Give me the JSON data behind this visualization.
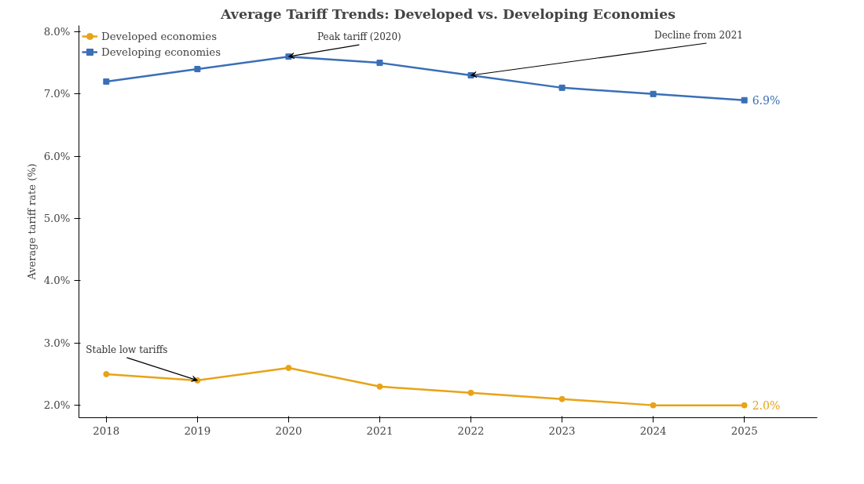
{
  "chart_data": {
    "type": "line",
    "title": "Average Tariff Trends: Developed vs. Developing Economies",
    "ylabel": "Average tariff rate (%)",
    "x": [
      2018,
      2019,
      2020,
      2021,
      2022,
      2023,
      2024,
      2025
    ],
    "series": [
      {
        "name": "Developed economies",
        "color": "#e8a317",
        "marker": "circle",
        "values": [
          2.5,
          2.4,
          2.6,
          2.3,
          2.2,
          2.1,
          2.0,
          2.0
        ],
        "value_labels": [
          null,
          null,
          null,
          null,
          null,
          null,
          null,
          "2.0%"
        ]
      },
      {
        "name": "Developing economies",
        "color": "#3a6fb8",
        "marker": "square",
        "values": [
          7.2,
          7.4,
          7.6,
          7.5,
          7.3,
          7.1,
          7.0,
          6.9
        ],
        "value_labels": [
          null,
          null,
          null,
          null,
          null,
          null,
          null,
          "6.9%"
        ]
      }
    ],
    "xlim": [
      2017.7,
      2025.8
    ],
    "xticks": [
      2018,
      2019,
      2020,
      2021,
      2022,
      2023,
      2024,
      2025
    ],
    "ylim": [
      1.8,
      8.1
    ],
    "yticks": [
      {
        "value": 2,
        "label": "2.0%"
      },
      {
        "value": 3,
        "label": "3.0%"
      },
      {
        "value": 4,
        "label": "4.0%"
      },
      {
        "value": 5,
        "label": "5.0%"
      },
      {
        "value": 6,
        "label": "6.0%"
      },
      {
        "value": 7,
        "label": "7.0%"
      },
      {
        "value": 8,
        "label": "8.0%"
      }
    ],
    "annotations": [
      {
        "text": "Peak tariff (2020)",
        "x": 2020,
        "y": 7.6
      },
      {
        "text": "Decline from 2021",
        "x": 2022,
        "y": 7.3
      },
      {
        "text": "Stable low tariffs",
        "x": 2019,
        "y": 2.4
      }
    ],
    "grid": false,
    "legend": "top left",
    "line_style": "solid"
  }
}
